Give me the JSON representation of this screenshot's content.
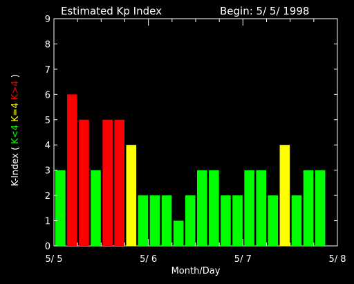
{
  "chart_data": {
    "type": "bar",
    "title": "Estimated Kp Index",
    "subtitle": "Begin: 5/ 5/ 1998",
    "xlabel": "Month/Day",
    "ylabel_parts": [
      "K-Index (",
      "K<4",
      "K=4",
      "K>4",
      ")"
    ],
    "x_ticks": [
      "5/ 5",
      "5/ 6",
      "5/ 7",
      "5/ 8"
    ],
    "y_ticks": [
      "0",
      "1",
      "2",
      "3",
      "4",
      "5",
      "6",
      "7",
      "8",
      "9"
    ],
    "ylim": [
      0,
      9
    ],
    "xlim_days": [
      0,
      3
    ],
    "bar_interval_hours": 3,
    "values": [
      3,
      6,
      5,
      3,
      5,
      5,
      4,
      2,
      2,
      2,
      1,
      2,
      3,
      3,
      2,
      2,
      3,
      3,
      2,
      4,
      2,
      3,
      3
    ],
    "colors": {
      "low": "#00ff00",
      "equal": "#ffff00",
      "high": "#ff0000",
      "axis": "#ffffff",
      "background": "#000000"
    },
    "grid": false,
    "legend": "left-vertical"
  }
}
